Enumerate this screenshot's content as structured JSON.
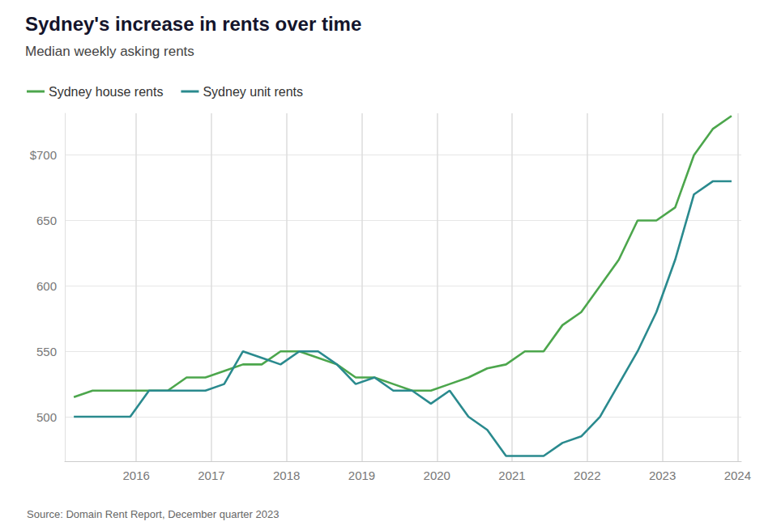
{
  "chart_data": {
    "type": "line",
    "title": "Sydney's increase in rents over time",
    "subtitle": "Median weekly asking rents",
    "source": "Source: Domain Rent Report, December quarter 2023",
    "x": [
      2015.17,
      2015.42,
      2015.67,
      2015.92,
      2016.17,
      2016.42,
      2016.67,
      2016.92,
      2017.17,
      2017.42,
      2017.67,
      2017.92,
      2018.17,
      2018.42,
      2018.67,
      2018.92,
      2019.17,
      2019.42,
      2019.67,
      2019.92,
      2020.17,
      2020.42,
      2020.67,
      2020.92,
      2021.17,
      2021.42,
      2021.67,
      2021.92,
      2022.17,
      2022.42,
      2022.67,
      2022.92,
      2023.17,
      2023.42,
      2023.67,
      2023.92
    ],
    "series": [
      {
        "name": "Sydney house rents",
        "color": "#4ca64c",
        "values": [
          515,
          520,
          520,
          520,
          520,
          520,
          530,
          530,
          535,
          540,
          540,
          550,
          550,
          545,
          540,
          530,
          530,
          525,
          520,
          520,
          525,
          530,
          537,
          540,
          550,
          550,
          570,
          580,
          600,
          620,
          650,
          650,
          660,
          700,
          720,
          730
        ]
      },
      {
        "name": "Sydney unit rents",
        "color": "#2a8a8e",
        "values": [
          500,
          500,
          500,
          500,
          520,
          520,
          520,
          520,
          525,
          550,
          545,
          540,
          550,
          550,
          540,
          525,
          530,
          520,
          520,
          510,
          520,
          500,
          490,
          470,
          470,
          470,
          480,
          485,
          500,
          525,
          550,
          580,
          620,
          670,
          680,
          680
        ]
      }
    ],
    "xlim": [
      2015.05,
      2024.05
    ],
    "xticks": [
      2016,
      2017,
      2018,
      2019,
      2020,
      2021,
      2022,
      2023,
      2024
    ],
    "ylim": [
      466,
      732
    ],
    "yticks": [
      500,
      550,
      600,
      650,
      {
        "value": 700,
        "label": "$700"
      }
    ],
    "grid": true,
    "legend": "top-left"
  }
}
